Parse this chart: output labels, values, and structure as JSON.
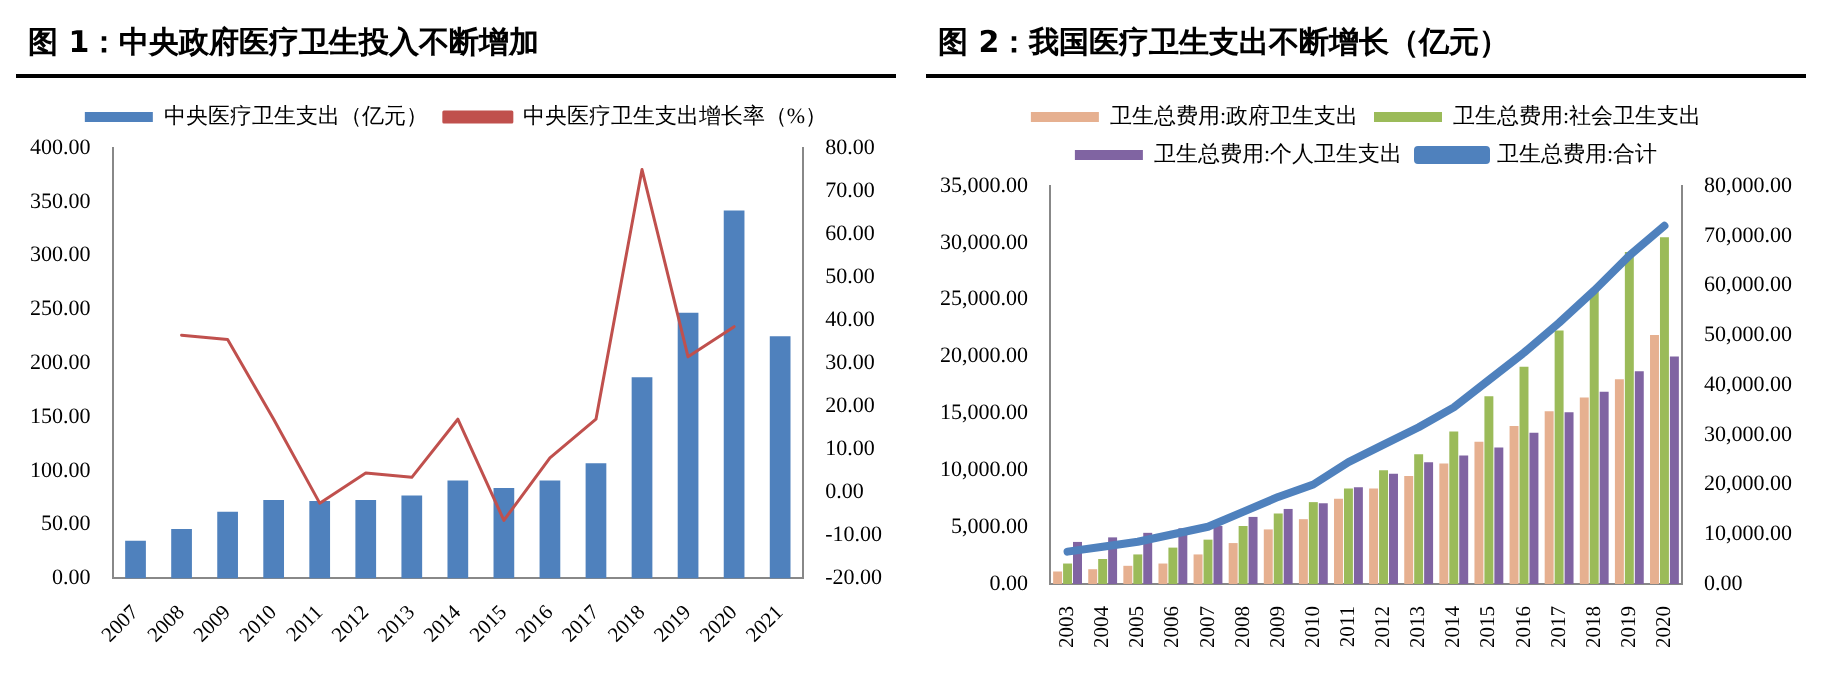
{
  "chart_data": [
    {
      "type": "bar",
      "title": "图 1：中央政府医疗卫生投入不断增加",
      "categories": [
        "2007",
        "2008",
        "2009",
        "2010",
        "2011",
        "2012",
        "2013",
        "2014",
        "2015",
        "2016",
        "2017",
        "2018",
        "2019",
        "2020",
        "2021"
      ],
      "series": [
        {
          "name": "中央医疗卫生支出（亿元）",
          "color": "#4f81bd",
          "values": [
            35,
            46,
            62,
            73,
            72,
            73,
            77,
            91,
            84,
            91,
            107,
            187,
            247,
            342,
            225
          ]
        },
        {
          "name": "中央医疗卫生支出增长率（%）",
          "type": "line",
          "axis": "y2",
          "color": "#c0504d",
          "values": [
            null,
            36.5,
            35.5,
            17,
            -2.5,
            4.5,
            3.5,
            17,
            -6.5,
            8,
            17,
            75,
            31.5,
            38.5,
            null
          ]
        }
      ],
      "ylim": [
        0,
        400
      ],
      "yticks": [
        {
          "value": 0,
          "label": "0.00"
        },
        {
          "value": 50,
          "label": "50.00"
        },
        {
          "value": 100,
          "label": "100.00"
        },
        {
          "value": 150,
          "label": "150.00"
        },
        {
          "value": 200,
          "label": "200.00"
        },
        {
          "value": 250,
          "label": "250.00"
        },
        {
          "value": 300,
          "label": "300.00"
        },
        {
          "value": 350,
          "label": "350.00"
        },
        {
          "value": 400,
          "label": "400.00"
        }
      ],
      "y2lim": [
        -20,
        80
      ],
      "y2ticks": [
        {
          "value": -20,
          "label": "-20.00"
        },
        {
          "value": -10,
          "label": "-10.00"
        },
        {
          "value": 0,
          "label": "0.00"
        },
        {
          "value": 10,
          "label": "10.00"
        },
        {
          "value": 20,
          "label": "20.00"
        },
        {
          "value": 30,
          "label": "30.00"
        },
        {
          "value": 40,
          "label": "40.00"
        },
        {
          "value": 50,
          "label": "50.00"
        },
        {
          "value": 60,
          "label": "60.00"
        },
        {
          "value": 70,
          "label": "70.00"
        },
        {
          "value": 80,
          "label": "80.00"
        }
      ],
      "legend": "top",
      "marker": "none",
      "line_style": "solid"
    },
    {
      "type": "bar",
      "title": "图 2：我国医疗卫生支出不断增长（亿元）",
      "categories": [
        "2003",
        "2004",
        "2005",
        "2006",
        "2007",
        "2008",
        "2009",
        "2010",
        "2011",
        "2012",
        "2013",
        "2014",
        "2015",
        "2016",
        "2017",
        "2018",
        "2019",
        "2020"
      ],
      "series": [
        {
          "name": "卫生总费用:政府卫生支出",
          "color": "#e6b090",
          "values": [
            1100,
            1300,
            1600,
            1800,
            2600,
            3600,
            4800,
            5700,
            7500,
            8400,
            9500,
            10600,
            12500,
            13900,
            15200,
            16400,
            18000,
            21900
          ]
        },
        {
          "name": "卫生总费用:社会卫生支出",
          "color": "#9bbb59",
          "values": [
            1800,
            2200,
            2600,
            3200,
            3900,
            5100,
            6200,
            7200,
            8400,
            10000,
            11400,
            13400,
            16500,
            19100,
            22300,
            25800,
            29200,
            30500
          ]
        },
        {
          "name": "卫生总费用:个人卫生支出",
          "color": "#8064a2",
          "values": [
            3700,
            4100,
            4500,
            4900,
            5100,
            5900,
            6600,
            7100,
            8500,
            9700,
            10700,
            11300,
            12000,
            13300,
            15100,
            16900,
            18700,
            20000
          ]
        },
        {
          "name": "卫生总费用:合计",
          "type": "line",
          "axis": "y2",
          "color": "#4f81bd",
          "values": [
            6500,
            7500,
            8500,
            10000,
            11500,
            14500,
            17500,
            20000,
            24500,
            28000,
            31500,
            35500,
            41000,
            46500,
            52500,
            59000,
            66000,
            72000
          ]
        }
      ],
      "ylim": [
        0,
        35000
      ],
      "yticks": [
        {
          "value": 0,
          "label": "0.00"
        },
        {
          "value": 5000,
          "label": "5,000.00"
        },
        {
          "value": 10000,
          "label": "10,000.00"
        },
        {
          "value": 15000,
          "label": "15,000.00"
        },
        {
          "value": 20000,
          "label": "20,000.00"
        },
        {
          "value": 25000,
          "label": "25,000.00"
        },
        {
          "value": 30000,
          "label": "30,000.00"
        },
        {
          "value": 35000,
          "label": "35,000.00"
        }
      ],
      "y2lim": [
        0,
        80000
      ],
      "y2ticks": [
        {
          "value": 0,
          "label": "0.00"
        },
        {
          "value": 10000,
          "label": "10,000.00"
        },
        {
          "value": 20000,
          "label": "20,000.00"
        },
        {
          "value": 30000,
          "label": "30,000.00"
        },
        {
          "value": 40000,
          "label": "40,000.00"
        },
        {
          "value": 50000,
          "label": "50,000.00"
        },
        {
          "value": 60000,
          "label": "60,000.00"
        },
        {
          "value": 70000,
          "label": "70,000.00"
        },
        {
          "value": 80000,
          "label": "80,000.00"
        }
      ],
      "legend": "top",
      "marker": "none",
      "line_style": "solid"
    }
  ]
}
